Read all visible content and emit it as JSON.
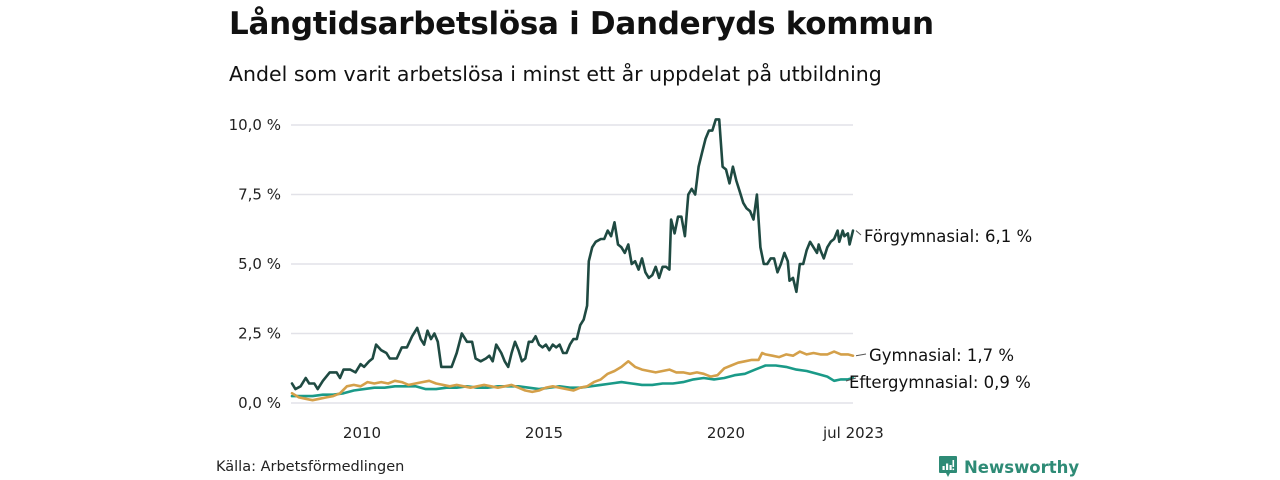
{
  "header": {
    "title": "Långtidsarbetslösa i Danderyds kommun",
    "subtitle": "Andel som varit arbetslösa i minst ett år uppdelat på utbildning"
  },
  "footer": {
    "source": "Källa: Arbetsförmedlingen",
    "brand": "Newsworthy",
    "brand_icon": "bar-chart-speech-bubble-icon"
  },
  "colors": {
    "forgymnasial": "#1f4a42",
    "gymnasial": "#d4a04a",
    "eftergymnasial": "#1a9a88",
    "grid": "#e2e2e8",
    "brand": "#2e8b76"
  },
  "chart_data": {
    "type": "line",
    "title": "Långtidsarbetslösa i Danderyds kommun",
    "subtitle": "Andel som varit arbetslösa i minst ett år uppdelat på utbildning",
    "xlabel": "",
    "ylabel": "",
    "x_range": [
      2008.1,
      2023.5
    ],
    "ylim": [
      0,
      10
    ],
    "grid": true,
    "y_ticks": [
      0,
      2.5,
      5,
      7.5,
      10
    ],
    "y_tick_labels": [
      "0,0 %",
      "2,5 %",
      "5,0 %",
      "7,5 %",
      "10,0 %"
    ],
    "x_ticks": [
      2010,
      2015,
      2020,
      2023.5
    ],
    "x_tick_labels": [
      "2010",
      "2015",
      "2020",
      "jul 2023"
    ],
    "legend": "inline-right",
    "series": [
      {
        "key": "forgymnasial",
        "name": "Förgymnasial",
        "end_label": "Förgymnasial: 6,1 %",
        "last_value": 6.1,
        "points": [
          [
            2008.1,
            0.7
          ],
          [
            2008.2,
            0.5
          ],
          [
            2008.35,
            0.6
          ],
          [
            2008.5,
            0.9
          ],
          [
            2008.6,
            0.7
          ],
          [
            2008.75,
            0.7
          ],
          [
            2008.85,
            0.5
          ],
          [
            2009.0,
            0.8
          ],
          [
            2009.2,
            1.1
          ],
          [
            2009.4,
            1.1
          ],
          [
            2009.5,
            0.9
          ],
          [
            2009.6,
            1.2
          ],
          [
            2009.8,
            1.2
          ],
          [
            2009.95,
            1.1
          ],
          [
            2010.1,
            1.4
          ],
          [
            2010.2,
            1.3
          ],
          [
            2010.35,
            1.5
          ],
          [
            2010.45,
            1.6
          ],
          [
            2010.55,
            2.1
          ],
          [
            2010.7,
            1.9
          ],
          [
            2010.85,
            1.8
          ],
          [
            2010.95,
            1.6
          ],
          [
            2011.15,
            1.6
          ],
          [
            2011.3,
            2.0
          ],
          [
            2011.45,
            2.0
          ],
          [
            2011.6,
            2.4
          ],
          [
            2011.75,
            2.7
          ],
          [
            2011.85,
            2.3
          ],
          [
            2011.95,
            2.1
          ],
          [
            2012.05,
            2.6
          ],
          [
            2012.15,
            2.3
          ],
          [
            2012.25,
            2.5
          ],
          [
            2012.35,
            2.2
          ],
          [
            2012.45,
            1.3
          ],
          [
            2012.6,
            1.3
          ],
          [
            2012.75,
            1.3
          ],
          [
            2012.9,
            1.8
          ],
          [
            2013.05,
            2.5
          ],
          [
            2013.2,
            2.2
          ],
          [
            2013.35,
            2.2
          ],
          [
            2013.45,
            1.6
          ],
          [
            2013.6,
            1.5
          ],
          [
            2013.75,
            1.6
          ],
          [
            2013.85,
            1.7
          ],
          [
            2013.95,
            1.5
          ],
          [
            2014.05,
            2.1
          ],
          [
            2014.2,
            1.8
          ],
          [
            2014.3,
            1.5
          ],
          [
            2014.4,
            1.3
          ],
          [
            2014.5,
            1.8
          ],
          [
            2014.6,
            2.2
          ],
          [
            2014.7,
            1.9
          ],
          [
            2014.8,
            1.5
          ],
          [
            2014.9,
            1.6
          ],
          [
            2015.0,
            2.2
          ],
          [
            2015.1,
            2.2
          ],
          [
            2015.2,
            2.4
          ],
          [
            2015.3,
            2.1
          ],
          [
            2015.4,
            2.0
          ],
          [
            2015.5,
            2.1
          ],
          [
            2015.6,
            1.9
          ],
          [
            2015.7,
            2.1
          ],
          [
            2015.8,
            2.0
          ],
          [
            2015.9,
            2.1
          ],
          [
            2016.0,
            1.8
          ],
          [
            2016.1,
            1.8
          ],
          [
            2016.2,
            2.1
          ],
          [
            2016.3,
            2.3
          ],
          [
            2016.4,
            2.3
          ],
          [
            2016.5,
            2.8
          ],
          [
            2016.6,
            3.0
          ],
          [
            2016.7,
            3.5
          ],
          [
            2016.75,
            5.1
          ],
          [
            2016.85,
            5.6
          ],
          [
            2016.95,
            5.8
          ],
          [
            2017.1,
            5.9
          ],
          [
            2017.2,
            5.9
          ],
          [
            2017.3,
            6.2
          ],
          [
            2017.4,
            6.0
          ],
          [
            2017.5,
            6.5
          ],
          [
            2017.6,
            5.7
          ],
          [
            2017.7,
            5.6
          ],
          [
            2017.8,
            5.4
          ],
          [
            2017.9,
            5.7
          ],
          [
            2018.0,
            5.0
          ],
          [
            2018.1,
            5.1
          ],
          [
            2018.2,
            4.8
          ],
          [
            2018.3,
            5.2
          ],
          [
            2018.4,
            4.7
          ],
          [
            2018.5,
            4.5
          ],
          [
            2018.6,
            4.6
          ],
          [
            2018.7,
            4.9
          ],
          [
            2018.8,
            4.5
          ],
          [
            2018.9,
            4.9
          ],
          [
            2019.0,
            4.9
          ],
          [
            2019.1,
            4.8
          ],
          [
            2019.15,
            6.6
          ],
          [
            2019.25,
            6.1
          ],
          [
            2019.35,
            6.7
          ],
          [
            2019.45,
            6.7
          ],
          [
            2019.55,
            6.0
          ],
          [
            2019.65,
            7.5
          ],
          [
            2019.75,
            7.7
          ],
          [
            2019.85,
            7.5
          ],
          [
            2019.95,
            8.5
          ],
          [
            2020.05,
            9.0
          ],
          [
            2020.15,
            9.5
          ],
          [
            2020.25,
            9.8
          ],
          [
            2020.35,
            9.8
          ],
          [
            2020.45,
            10.2
          ],
          [
            2020.55,
            10.2
          ],
          [
            2020.65,
            8.5
          ],
          [
            2020.75,
            8.4
          ],
          [
            2020.85,
            7.9
          ],
          [
            2020.95,
            8.5
          ],
          [
            2021.05,
            8.0
          ],
          [
            2021.15,
            7.6
          ],
          [
            2021.25,
            7.2
          ],
          [
            2021.35,
            7.0
          ],
          [
            2021.45,
            6.9
          ],
          [
            2021.55,
            6.6
          ],
          [
            2021.65,
            7.5
          ],
          [
            2021.75,
            5.6
          ],
          [
            2021.85,
            5.0
          ],
          [
            2021.95,
            5.0
          ],
          [
            2022.05,
            5.2
          ],
          [
            2022.15,
            5.2
          ],
          [
            2022.25,
            4.7
          ],
          [
            2022.35,
            5.0
          ],
          [
            2022.45,
            5.4
          ],
          [
            2022.55,
            5.1
          ],
          [
            2022.6,
            4.4
          ],
          [
            2022.7,
            4.5
          ],
          [
            2022.8,
            4.0
          ],
          [
            2022.9,
            5.0
          ],
          [
            2023.0,
            5.0
          ],
          [
            2023.1,
            5.5
          ],
          [
            2023.2,
            5.8
          ],
          [
            2023.3,
            5.6
          ],
          [
            2023.4,
            5.4
          ],
          [
            2023.45,
            5.7
          ],
          [
            2023.5,
            5.5
          ],
          [
            2023.6,
            5.2
          ],
          [
            2023.7,
            5.6
          ],
          [
            2023.8,
            5.8
          ],
          [
            2023.9,
            5.9
          ],
          [
            2024.0,
            6.2
          ],
          [
            2024.05,
            5.8
          ],
          [
            2024.15,
            6.2
          ],
          [
            2024.2,
            6.0
          ],
          [
            2024.3,
            6.1
          ],
          [
            2024.35,
            5.7
          ],
          [
            2024.45,
            6.2
          ]
        ]
      },
      {
        "key": "gymnasial",
        "name": "Gymnasial",
        "end_label": "Gymnasial: 1,7 %",
        "last_value": 1.7,
        "points": [
          [
            2008.1,
            0.35
          ],
          [
            2008.3,
            0.2
          ],
          [
            2008.5,
            0.15
          ],
          [
            2008.7,
            0.1
          ],
          [
            2008.9,
            0.15
          ],
          [
            2009.1,
            0.2
          ],
          [
            2009.3,
            0.25
          ],
          [
            2009.5,
            0.35
          ],
          [
            2009.7,
            0.6
          ],
          [
            2009.9,
            0.65
          ],
          [
            2010.1,
            0.6
          ],
          [
            2010.3,
            0.75
          ],
          [
            2010.5,
            0.7
          ],
          [
            2010.7,
            0.75
          ],
          [
            2010.9,
            0.7
          ],
          [
            2011.1,
            0.8
          ],
          [
            2011.3,
            0.75
          ],
          [
            2011.5,
            0.65
          ],
          [
            2011.7,
            0.7
          ],
          [
            2011.9,
            0.75
          ],
          [
            2012.1,
            0.8
          ],
          [
            2012.3,
            0.7
          ],
          [
            2012.5,
            0.65
          ],
          [
            2012.7,
            0.6
          ],
          [
            2012.9,
            0.65
          ],
          [
            2013.1,
            0.6
          ],
          [
            2013.3,
            0.55
          ],
          [
            2013.5,
            0.6
          ],
          [
            2013.7,
            0.65
          ],
          [
            2013.9,
            0.6
          ],
          [
            2014.1,
            0.55
          ],
          [
            2014.3,
            0.6
          ],
          [
            2014.5,
            0.65
          ],
          [
            2014.7,
            0.55
          ],
          [
            2014.9,
            0.45
          ],
          [
            2015.1,
            0.4
          ],
          [
            2015.3,
            0.45
          ],
          [
            2015.5,
            0.55
          ],
          [
            2015.7,
            0.6
          ],
          [
            2015.9,
            0.55
          ],
          [
            2016.1,
            0.5
          ],
          [
            2016.3,
            0.45
          ],
          [
            2016.5,
            0.55
          ],
          [
            2016.7,
            0.6
          ],
          [
            2016.9,
            0.75
          ],
          [
            2017.1,
            0.85
          ],
          [
            2017.3,
            1.05
          ],
          [
            2017.5,
            1.15
          ],
          [
            2017.7,
            1.3
          ],
          [
            2017.9,
            1.5
          ],
          [
            2018.1,
            1.3
          ],
          [
            2018.3,
            1.2
          ],
          [
            2018.5,
            1.15
          ],
          [
            2018.7,
            1.1
          ],
          [
            2018.9,
            1.15
          ],
          [
            2019.1,
            1.2
          ],
          [
            2019.3,
            1.1
          ],
          [
            2019.5,
            1.1
          ],
          [
            2019.7,
            1.05
          ],
          [
            2019.9,
            1.1
          ],
          [
            2020.1,
            1.05
          ],
          [
            2020.3,
            0.95
          ],
          [
            2020.5,
            1.0
          ],
          [
            2020.7,
            1.25
          ],
          [
            2020.9,
            1.35
          ],
          [
            2021.1,
            1.45
          ],
          [
            2021.3,
            1.5
          ],
          [
            2021.5,
            1.55
          ],
          [
            2021.7,
            1.55
          ],
          [
            2021.8,
            1.8
          ],
          [
            2021.9,
            1.75
          ],
          [
            2022.1,
            1.7
          ],
          [
            2022.3,
            1.65
          ],
          [
            2022.5,
            1.75
          ],
          [
            2022.7,
            1.7
          ],
          [
            2022.9,
            1.85
          ],
          [
            2023.1,
            1.75
          ],
          [
            2023.3,
            1.8
          ],
          [
            2023.5,
            1.75
          ],
          [
            2023.7,
            1.75
          ],
          [
            2023.9,
            1.85
          ],
          [
            2024.1,
            1.75
          ],
          [
            2024.3,
            1.75
          ],
          [
            2024.45,
            1.7
          ]
        ]
      },
      {
        "key": "eftergymnasial",
        "name": "Eftergymnasial",
        "end_label": "Eftergymnasial: 0,9 %",
        "last_value": 0.9,
        "points": [
          [
            2008.1,
            0.25
          ],
          [
            2008.4,
            0.25
          ],
          [
            2008.7,
            0.25
          ],
          [
            2009.0,
            0.3
          ],
          [
            2009.3,
            0.3
          ],
          [
            2009.6,
            0.35
          ],
          [
            2009.9,
            0.45
          ],
          [
            2010.2,
            0.5
          ],
          [
            2010.5,
            0.55
          ],
          [
            2010.8,
            0.55
          ],
          [
            2011.1,
            0.6
          ],
          [
            2011.4,
            0.6
          ],
          [
            2011.7,
            0.6
          ],
          [
            2012.0,
            0.5
          ],
          [
            2012.3,
            0.5
          ],
          [
            2012.6,
            0.55
          ],
          [
            2012.9,
            0.55
          ],
          [
            2013.2,
            0.6
          ],
          [
            2013.5,
            0.55
          ],
          [
            2013.8,
            0.55
          ],
          [
            2014.1,
            0.6
          ],
          [
            2014.4,
            0.6
          ],
          [
            2014.7,
            0.6
          ],
          [
            2015.0,
            0.55
          ],
          [
            2015.3,
            0.5
          ],
          [
            2015.6,
            0.55
          ],
          [
            2015.9,
            0.6
          ],
          [
            2016.2,
            0.55
          ],
          [
            2016.5,
            0.55
          ],
          [
            2016.8,
            0.6
          ],
          [
            2017.1,
            0.65
          ],
          [
            2017.4,
            0.7
          ],
          [
            2017.7,
            0.75
          ],
          [
            2018.0,
            0.7
          ],
          [
            2018.3,
            0.65
          ],
          [
            2018.6,
            0.65
          ],
          [
            2018.9,
            0.7
          ],
          [
            2019.2,
            0.7
          ],
          [
            2019.5,
            0.75
          ],
          [
            2019.8,
            0.85
          ],
          [
            2020.1,
            0.9
          ],
          [
            2020.4,
            0.85
          ],
          [
            2020.7,
            0.9
          ],
          [
            2021.0,
            1.0
          ],
          [
            2021.3,
            1.05
          ],
          [
            2021.6,
            1.2
          ],
          [
            2021.9,
            1.35
          ],
          [
            2022.2,
            1.35
          ],
          [
            2022.5,
            1.3
          ],
          [
            2022.8,
            1.2
          ],
          [
            2023.1,
            1.15
          ],
          [
            2023.4,
            1.05
          ],
          [
            2023.7,
            0.95
          ],
          [
            2023.9,
            0.8
          ],
          [
            2024.1,
            0.85
          ],
          [
            2024.3,
            0.85
          ],
          [
            2024.45,
            0.9
          ]
        ]
      }
    ]
  }
}
